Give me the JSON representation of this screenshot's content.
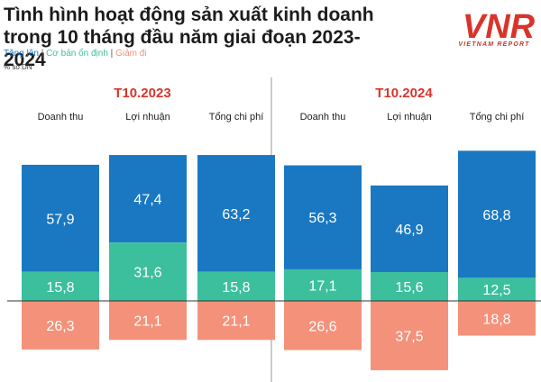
{
  "title": [
    "Tình hình hoạt động sản xuất kinh doanh",
    "trong 10 tháng đầu năm giai đoạn 2023-2024"
  ],
  "legend": [
    {
      "label": "Tăng lên",
      "color": "#1a78c2"
    },
    {
      "label": "Cơ bản ổn định",
      "color": "#3cbf9c"
    },
    {
      "label": "Giảm đi",
      "color": "#f4917a"
    }
  ],
  "unit": "% số DN",
  "logo": {
    "mark": "VNR",
    "sub": "VIETNAM REPORT",
    "color": "#d9342b"
  },
  "chart_data": {
    "type": "bar",
    "stacked": true,
    "unit": "% số DN",
    "groups": [
      "T10.2023",
      "T10.2024"
    ],
    "categories": [
      "Doanh thu",
      "Lợi nhuận",
      "Tổng chi phí"
    ],
    "series": [
      {
        "name": "Tăng lên",
        "color": "#1a78c2",
        "values": [
          [
            57.9,
            47.4,
            63.2
          ],
          [
            56.3,
            46.9,
            68.8
          ]
        ]
      },
      {
        "name": "Cơ bản ổn định",
        "color": "#3cbf9c",
        "values": [
          [
            15.8,
            31.6,
            15.8
          ],
          [
            17.1,
            15.6,
            12.5
          ]
        ]
      },
      {
        "name": "Giảm đi",
        "color": "#f4917a",
        "values": [
          [
            26.3,
            21.1,
            21.1
          ],
          [
            26.6,
            37.5,
            18.8
          ]
        ]
      }
    ],
    "group_label_color": "#d9342b"
  }
}
